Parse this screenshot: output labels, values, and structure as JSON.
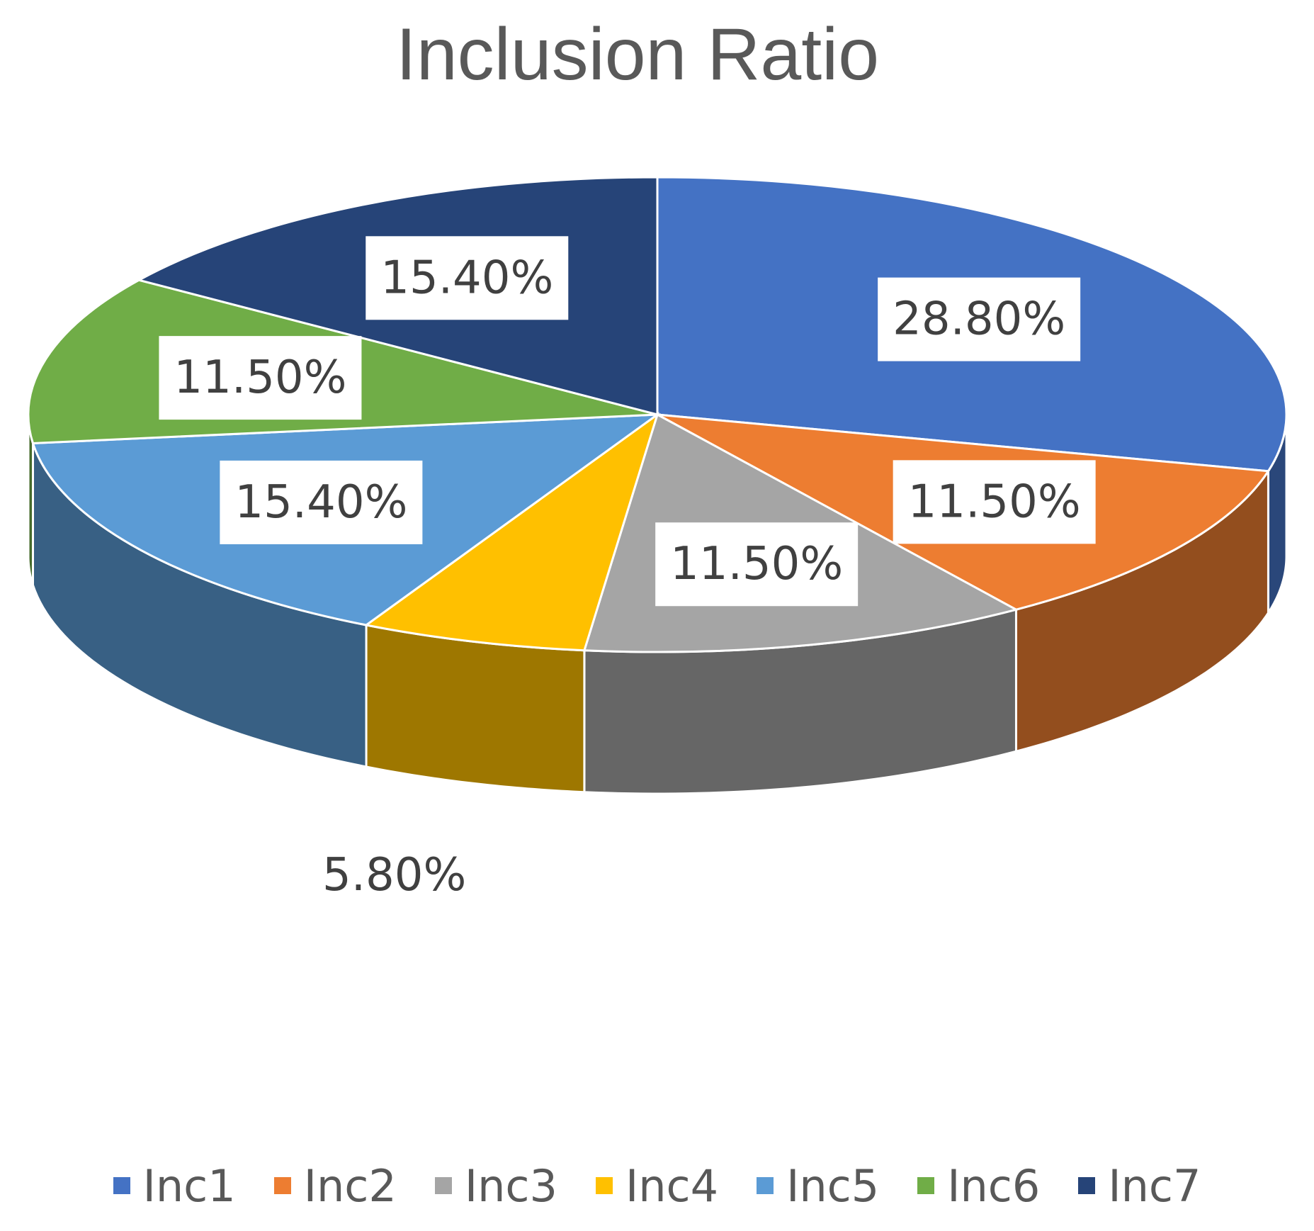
{
  "chart_data": {
    "type": "pie",
    "title": "Inclusion Ratio",
    "categories": [
      "Inc1",
      "Inc2",
      "Inc3",
      "Inc4",
      "Inc5",
      "Inc6",
      "Inc7"
    ],
    "values": [
      28.8,
      11.5,
      11.5,
      5.8,
      15.4,
      11.5,
      15.4
    ],
    "labels": [
      "28.80%",
      "11.50%",
      "11.50%",
      "5.80%",
      "15.40%",
      "11.50%",
      "15.40%"
    ],
    "colors": [
      "#4472C4",
      "#ED7D31",
      "#A5A5A5",
      "#FFC000",
      "#5B9BD5",
      "#70AD47",
      "#264478"
    ],
    "legend_position": "bottom",
    "style": "3d"
  }
}
